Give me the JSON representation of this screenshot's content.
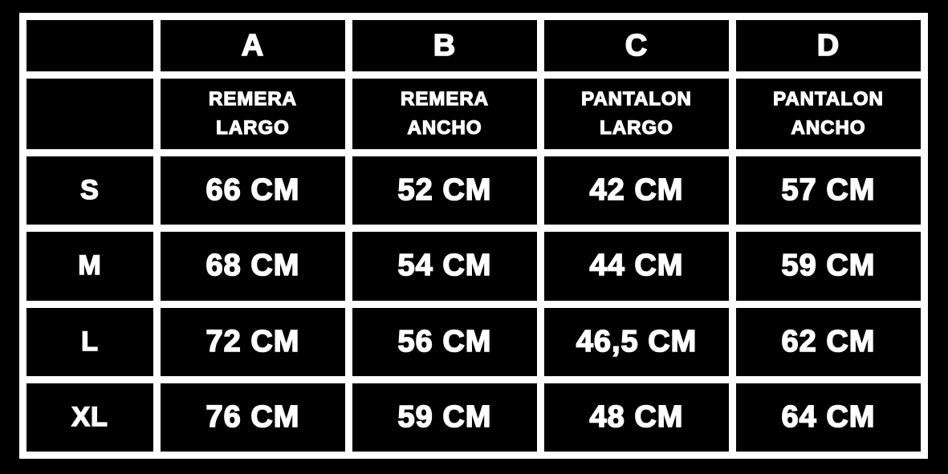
{
  "chart_data": {
    "type": "table",
    "title": "",
    "columns": [
      "",
      "A",
      "B",
      "C",
      "D"
    ],
    "column_descriptions": [
      "",
      "REMERA LARGO",
      "REMERA ANCHO",
      "PANTALON LARGO",
      "PANTALON ANCHO"
    ],
    "rows": [
      [
        "S",
        "66 CM",
        "52 CM",
        "42 CM",
        "57 CM"
      ],
      [
        "M",
        "68 CM",
        "54 CM",
        "44 CM",
        "59 CM"
      ],
      [
        "L",
        "72 CM",
        "56 CM",
        "46,5 CM",
        "62 CM"
      ],
      [
        "XL",
        "76 CM",
        "59 CM",
        "48 CM",
        "64 CM"
      ]
    ]
  },
  "header": {
    "letters": [
      "A",
      "B",
      "C",
      "D"
    ],
    "names": [
      "REMERA\nLARGO",
      "REMERA\nANCHO",
      "PANTALON\nLARGO",
      "PANTALON\nANCHO"
    ]
  },
  "rows": [
    {
      "size": "S",
      "values": [
        "66 CM",
        "52 CM",
        "42 CM",
        "57 CM"
      ]
    },
    {
      "size": "M",
      "values": [
        "68 CM",
        "54 CM",
        "44 CM",
        "59 CM"
      ]
    },
    {
      "size": "L",
      "values": [
        "72 CM",
        "56 CM",
        "46,5 CM",
        "62 CM"
      ]
    },
    {
      "size": "XL",
      "values": [
        "76 CM",
        "59 CM",
        "48 CM",
        "64 CM"
      ]
    }
  ],
  "colors": {
    "background": "#000000",
    "grid": "#ffffff",
    "text": "#ffffff"
  }
}
